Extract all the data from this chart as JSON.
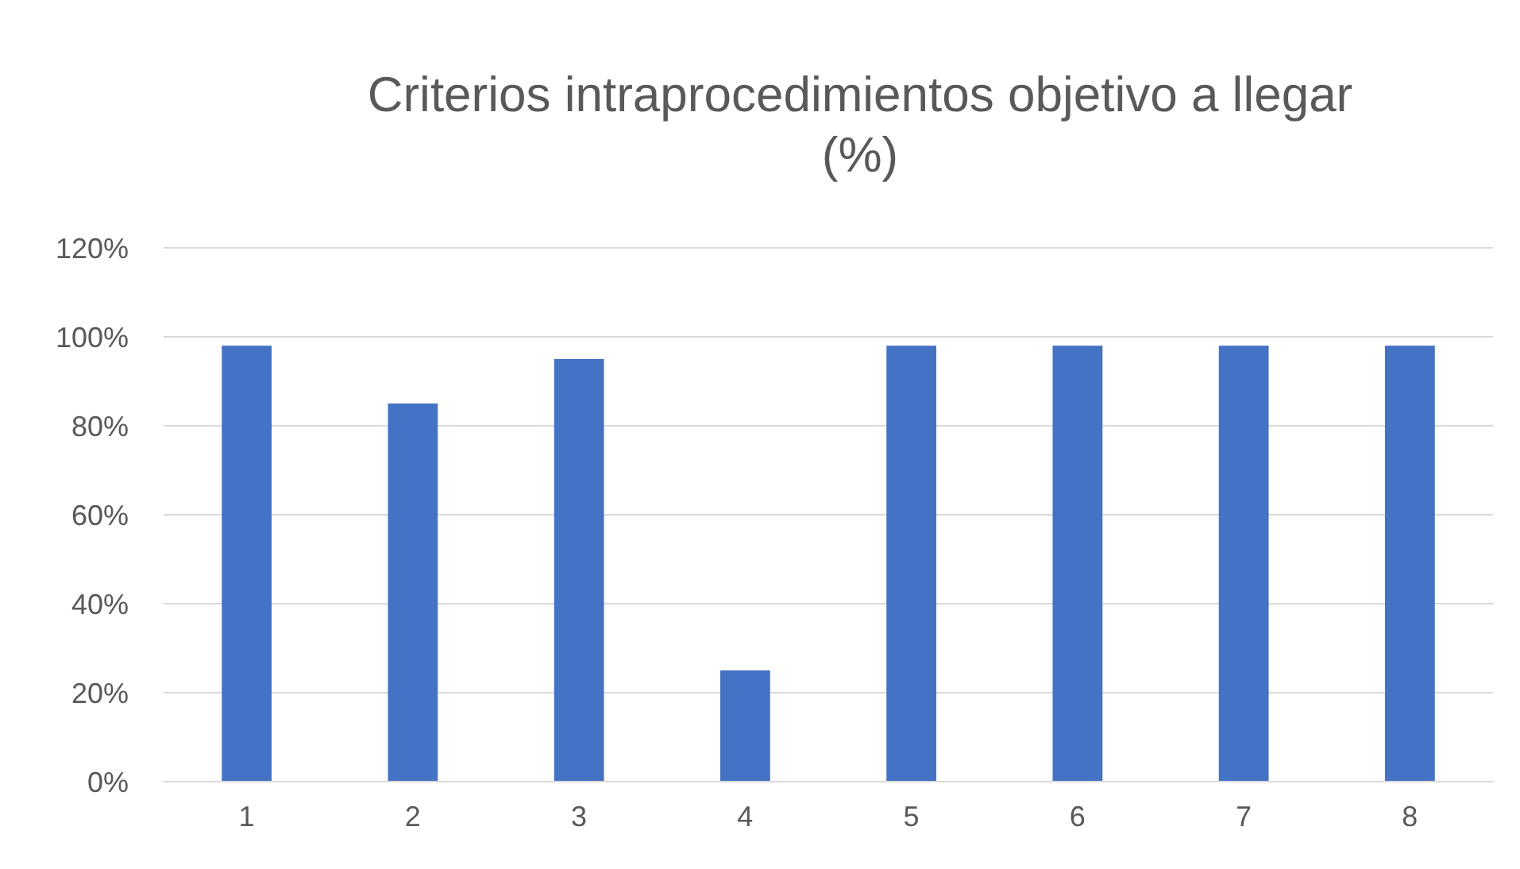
{
  "chart_data": {
    "type": "bar",
    "title": "Criterios intraprocedimientos objetivo a llegar\n(%)",
    "categories": [
      "1",
      "2",
      "3",
      "4",
      "5",
      "6",
      "7",
      "8"
    ],
    "values": [
      98,
      85,
      95,
      25,
      98,
      98,
      98,
      98
    ],
    "color": "#4472c4",
    "ylim": [
      0,
      120
    ],
    "yticks": [
      {
        "value": 0,
        "label": "0%"
      },
      {
        "value": 20,
        "label": "20%"
      },
      {
        "value": 40,
        "label": "40%"
      },
      {
        "value": 60,
        "label": "60%"
      },
      {
        "value": 80,
        "label": "80%"
      },
      {
        "value": 100,
        "label": "100%"
      },
      {
        "value": 120,
        "label": "120%"
      }
    ],
    "grid": true
  }
}
